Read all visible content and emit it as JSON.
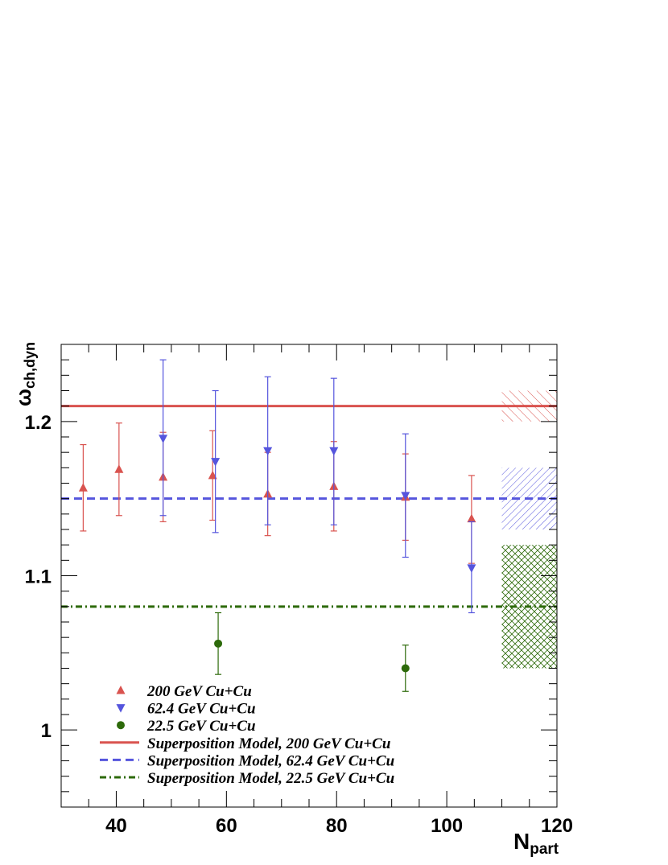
{
  "chart_data": {
    "type": "scatter",
    "xlabel": {
      "main": "N",
      "sub": "part"
    },
    "ylabel": {
      "main": "ω",
      "sub": "ch,dyn"
    },
    "xlim": [
      30,
      120
    ],
    "ylim": [
      0.95,
      1.25
    ],
    "xticks": [
      40,
      60,
      80,
      100,
      120
    ],
    "xtick_labels": [
      "40",
      "60",
      "80",
      "100",
      "120"
    ],
    "yticks": [
      1.0,
      1.1,
      1.2
    ],
    "ytick_labels": [
      "1",
      "1.1",
      "1.2"
    ],
    "grid": false,
    "legend_position": "bottom-left",
    "series": [
      {
        "name": "200 GeV Cu+Cu",
        "marker": "triangle-up",
        "color": "#d9534f",
        "points": [
          {
            "x": 34,
            "y": 1.157,
            "ylo": 1.129,
            "yhi": 1.185
          },
          {
            "x": 40.5,
            "y": 1.169,
            "ylo": 1.139,
            "yhi": 1.199
          },
          {
            "x": 48.5,
            "y": 1.164,
            "ylo": 1.135,
            "yhi": 1.193
          },
          {
            "x": 57.5,
            "y": 1.165,
            "ylo": 1.136,
            "yhi": 1.194
          },
          {
            "x": 67.5,
            "y": 1.153,
            "ylo": 1.126,
            "yhi": 1.18
          },
          {
            "x": 79.5,
            "y": 1.158,
            "ylo": 1.129,
            "yhi": 1.187
          },
          {
            "x": 92.5,
            "y": 1.151,
            "ylo": 1.123,
            "yhi": 1.179
          },
          {
            "x": 104.5,
            "y": 1.137,
            "ylo": 1.108,
            "yhi": 1.165
          }
        ]
      },
      {
        "name": "62.4 GeV Cu+Cu",
        "marker": "triangle-down",
        "color": "#5555dd",
        "points": [
          {
            "x": 48.5,
            "y": 1.189,
            "ylo": 1.139,
            "yhi": 1.24
          },
          {
            "x": 58,
            "y": 1.174,
            "ylo": 1.128,
            "yhi": 1.22
          },
          {
            "x": 67.5,
            "y": 1.181,
            "ylo": 1.133,
            "yhi": 1.229
          },
          {
            "x": 79.5,
            "y": 1.181,
            "ylo": 1.133,
            "yhi": 1.228
          },
          {
            "x": 92.5,
            "y": 1.152,
            "ylo": 1.112,
            "yhi": 1.192
          },
          {
            "x": 104.5,
            "y": 1.105,
            "ylo": 1.076,
            "yhi": 1.135
          }
        ]
      },
      {
        "name": "22.5 GeV Cu+Cu",
        "marker": "circle",
        "color": "#2d6a0a",
        "points": [
          {
            "x": 58.5,
            "y": 1.056,
            "ylo": 1.036,
            "yhi": 1.076
          },
          {
            "x": 92.5,
            "y": 1.04,
            "ylo": 1.025,
            "yhi": 1.055
          }
        ]
      }
    ],
    "model_lines": [
      {
        "name": "Superposition Model, 200 GeV Cu+Cu",
        "y": 1.21,
        "color": "#d9534f",
        "style": "solid",
        "band": [
          1.2,
          1.22
        ],
        "band_x": [
          110,
          120
        ],
        "band_hatch": "diagonal"
      },
      {
        "name": "Superposition Model, 62.4 GeV Cu+Cu",
        "y": 1.15,
        "color": "#5555dd",
        "style": "dashed",
        "band": [
          1.13,
          1.17
        ],
        "band_x": [
          110,
          120
        ],
        "band_hatch": "backdiagonal"
      },
      {
        "name": "Superposition Model, 22.5 GeV Cu+Cu",
        "y": 1.08,
        "color": "#2d6a0a",
        "style": "dash-dot",
        "band": [
          1.04,
          1.12
        ],
        "band_x": [
          110,
          120
        ],
        "band_hatch": "crosshatch"
      }
    ]
  }
}
